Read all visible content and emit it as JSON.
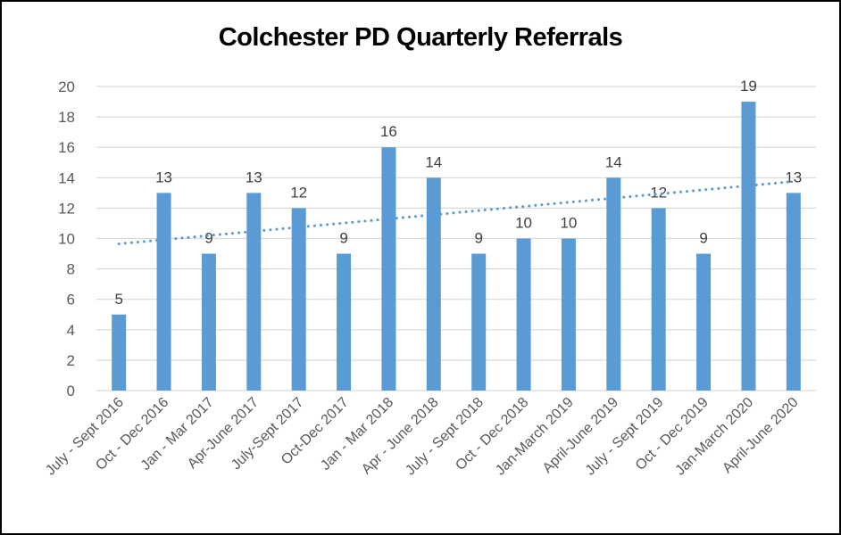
{
  "chart_data": {
    "type": "bar",
    "title": "Colchester PD Quarterly Referrals",
    "xlabel": "",
    "ylabel": "",
    "ylim": [
      0,
      20
    ],
    "yticks": [
      0,
      2,
      4,
      6,
      8,
      10,
      12,
      14,
      16,
      18,
      20
    ],
    "grid": true,
    "legend": "none",
    "categories": [
      "July - Sept 2016",
      "Oct - Dec 2016",
      "Jan - Mar 2017",
      "Apr-June 2017",
      "July-Sept 2017",
      "Oct-Dec 2017",
      "Jan - Mar 2018",
      "Apr - June 2018",
      "July - Sept 2018",
      "Oct - Dec 2018",
      "Jan-March 2019",
      "April-June 2019",
      "July - Sept 2019",
      "Oct - Dec 2019",
      "Jan-March 2020",
      "April-June 2020"
    ],
    "series": [
      {
        "name": "Referrals",
        "values": [
          5,
          13,
          9,
          13,
          12,
          9,
          16,
          14,
          9,
          10,
          10,
          14,
          12,
          9,
          19,
          13
        ],
        "color": "#5b9bd5"
      }
    ],
    "trendline": {
      "type": "linear",
      "style": "dotted",
      "color": "#5b9bd5",
      "start": 9.65,
      "end": 13.75
    },
    "data_labels": true
  },
  "colors": {
    "bar": "#5b9bd5",
    "grid": "#d9d9d9",
    "tick_text": "#595959",
    "label_text": "#404040"
  }
}
